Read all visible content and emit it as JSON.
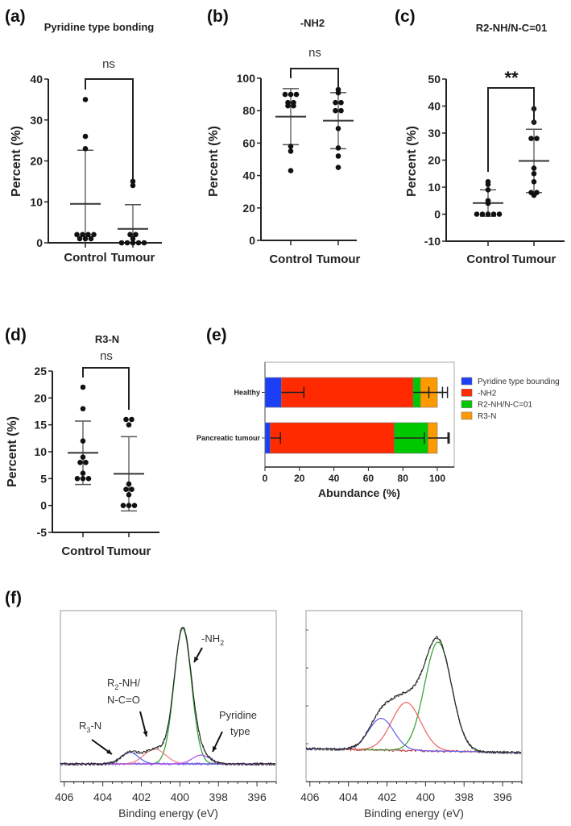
{
  "chart_data": [
    {
      "panel": "(a)",
      "type": "scatter",
      "title": "Pyridine type bonding",
      "ylabel": "Percent (%)",
      "ylim": [
        0,
        40
      ],
      "yticks": [
        0,
        10,
        20,
        30,
        40
      ],
      "categories": [
        "Control",
        "Tumour"
      ],
      "points": [
        [
          35,
          26,
          23,
          2,
          2,
          2,
          2,
          1,
          1,
          1
        ],
        [
          15,
          14,
          2,
          2,
          1,
          0,
          0,
          0,
          0,
          0
        ]
      ],
      "mean": [
        9.5,
        3.4
      ],
      "sd": [
        13.1,
        5.9
      ],
      "significance": "ns"
    },
    {
      "panel": "(b)",
      "type": "scatter",
      "title": "-NH2",
      "ylabel": "Percent (%)",
      "ylim": [
        0,
        100
      ],
      "yticks": [
        0,
        20,
        40,
        60,
        80,
        100
      ],
      "categories": [
        "Control",
        "Tumour"
      ],
      "points": [
        [
          90,
          90,
          90,
          85,
          85,
          83,
          83,
          58,
          55,
          43
        ],
        [
          93,
          91,
          85,
          85,
          80,
          80,
          69,
          57,
          52,
          45
        ]
      ],
      "mean": [
        76.3,
        73.8
      ],
      "sd": [
        17.3,
        17.3
      ],
      "significance": "ns"
    },
    {
      "panel": "(c)",
      "type": "scatter",
      "title": "R2-NH/N-C=01",
      "ylabel": "Percent (%)",
      "ylim": [
        -10,
        50
      ],
      "yticks": [
        -10,
        0,
        10,
        20,
        30,
        40,
        50
      ],
      "categories": [
        "Control",
        "Tumour"
      ],
      "points": [
        [
          12,
          11,
          9,
          5,
          4,
          0,
          0,
          0,
          0,
          0
        ],
        [
          39,
          34,
          28,
          28,
          17,
          15,
          12,
          8,
          8,
          7
        ]
      ],
      "mean": [
        4.1,
        19.7
      ],
      "sd": [
        4.9,
        11.7
      ],
      "significance": "**"
    },
    {
      "panel": "(d)",
      "type": "scatter",
      "title": "R3-N",
      "ylabel": "Percent (%)",
      "ylim": [
        -5,
        25
      ],
      "yticks": [
        -5,
        0,
        5,
        10,
        15,
        20,
        25
      ],
      "categories": [
        "Control",
        "Tumour"
      ],
      "points": [
        [
          22,
          18,
          12,
          9,
          8,
          8,
          6,
          5,
          5,
          5
        ],
        [
          16,
          16,
          15,
          4,
          3,
          3,
          2,
          0,
          0,
          0
        ]
      ],
      "mean": [
        9.8,
        5.9
      ],
      "sd": [
        5.9,
        6.9
      ],
      "significance": "ns"
    },
    {
      "panel": "(e)",
      "type": "bar",
      "orientation": "horizontal",
      "stacked": true,
      "xlabel": "Abundance (%)",
      "xlim": [
        0,
        110
      ],
      "xticks": [
        0,
        20,
        40,
        60,
        80,
        100
      ],
      "categories": [
        "Healthy",
        "Pancreatic tumour"
      ],
      "legend_position": "right",
      "series": [
        {
          "name": "Pyridine type bounding",
          "color": "#1c3ff5",
          "values": [
            9.5,
            3
          ],
          "error": [
            13.1,
            6
          ]
        },
        {
          "name": "-NH2",
          "color": "#ff2a00",
          "values": [
            76.5,
            72
          ],
          "error": [
            17,
            17.5
          ]
        },
        {
          "name": "R2-NH/N-C=01",
          "color": "#00c800",
          "values": [
            4.2,
            19.5
          ],
          "error": [
            4.9,
            11.7
          ]
        },
        {
          "name": "R3-N",
          "color": "#ff9900",
          "values": [
            9.8,
            5.5
          ],
          "error": [
            5.9,
            6.9
          ]
        }
      ]
    },
    {
      "panel": "(f)",
      "type": "line",
      "subplot": "left",
      "xlabel": "Binding energy (eV)",
      "xlim": [
        406.2,
        395
      ],
      "xticks": [
        406,
        404,
        402,
        400,
        398,
        396
      ],
      "y_tick_labels": false,
      "components": [
        {
          "label": "-NH2",
          "color": "#2e9e2e",
          "center": 399.85,
          "height": 100,
          "sigma": 0.45
        },
        {
          "label": "R2-NH/ N-C=O",
          "color": "#f08080",
          "center": 401.3,
          "height": 11,
          "sigma": 0.55
        },
        {
          "label": "R3-N",
          "color": "#5a5af0",
          "center": 402.6,
          "height": 8.5,
          "sigma": 0.45
        },
        {
          "label": "Pyridine type",
          "color": "#b050f0",
          "center": 398.9,
          "height": 6.5,
          "sigma": 0.45
        }
      ]
    },
    {
      "panel": "(f)",
      "type": "line",
      "subplot": "right",
      "xlabel": "Binding energy (eV)",
      "xlim": [
        406.2,
        395
      ],
      "xticks": [
        406,
        404,
        402,
        400,
        398,
        396
      ],
      "y_tick_labels": false,
      "components": [
        {
          "color": "#2e9e2e",
          "center": 399.35,
          "height": 100,
          "sigma": 0.7
        },
        {
          "color": "#f06060",
          "center": 401.0,
          "height": 44,
          "sigma": 0.75
        },
        {
          "color": "#6060f0",
          "center": 402.3,
          "height": 29,
          "sigma": 0.65
        }
      ]
    }
  ],
  "labels": {
    "a": "(a)",
    "b": "(b)",
    "c": "(c)",
    "d": "(d)",
    "e": "(e)",
    "f": "(f)",
    "f_annotations": {
      "nh2": "-NH",
      "nh2_sub": "2",
      "r2_line1": "R",
      "r2_sub": "2",
      "r2_rest": "-NH/",
      "r2_line2": "N-C=O",
      "r3": "R",
      "r3_sub": "3",
      "r3_rest": "-N",
      "pyr1": "Pyridine",
      "pyr2": "type"
    }
  }
}
